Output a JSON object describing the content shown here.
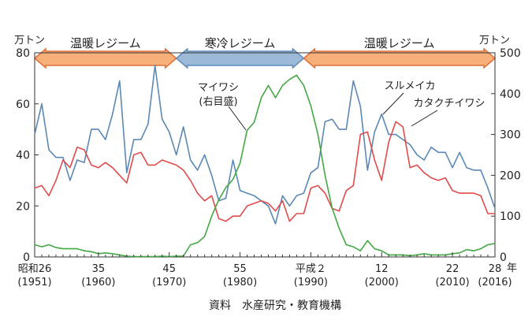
{
  "chart_data": {
    "type": "line",
    "y_left_unit": "万トン",
    "y_right_unit": "万トン",
    "x_unit": "年",
    "source_note": "資料　水産研究・教育機構",
    "ylim_left": [
      0,
      80
    ],
    "ylim_right": [
      0,
      500
    ],
    "xlim": [
      1951,
      2016
    ],
    "left_ticks": [
      "0",
      "20",
      "40",
      "60",
      "80"
    ],
    "right_ticks": [
      "0",
      "100",
      "200",
      "300",
      "400",
      "500"
    ],
    "x_ticks": [
      {
        "year": 1951,
        "era": "昭和26",
        "western": "(1951)"
      },
      {
        "year": 1960,
        "era": "35",
        "western": "(1960)"
      },
      {
        "year": 1970,
        "era": "45",
        "western": "(1970)"
      },
      {
        "year": 1980,
        "era": "55",
        "western": "(1980)"
      },
      {
        "year": 1990,
        "era": "平成２",
        "western": "(1990)"
      },
      {
        "year": 2000,
        "era": "12",
        "western": "(2000)"
      },
      {
        "year": 2010,
        "era": "22",
        "western": "(2010)"
      },
      {
        "year": 2016,
        "era": "28",
        "western": "(2016)"
      }
    ],
    "regimes": [
      {
        "label": "温暖レジーム",
        "start": 1951,
        "end": 1971,
        "color": "#f7b07a",
        "edge": "#e0703a"
      },
      {
        "label": "寒冷レジーム",
        "start": 1971,
        "end": 1989,
        "color": "#9db9d8",
        "edge": "#5f8bbd"
      },
      {
        "label": "温暖レジーム",
        "start": 1989,
        "end": 2016,
        "color": "#f7b07a",
        "edge": "#e0703a"
      }
    ],
    "series": [
      {
        "name": "スルメイカ",
        "axis": "left",
        "color": "#5b88b5",
        "x": [
          1951,
          1952,
          1953,
          1954,
          1955,
          1956,
          1957,
          1958,
          1959,
          1960,
          1961,
          1962,
          1963,
          1964,
          1965,
          1966,
          1967,
          1968,
          1969,
          1970,
          1971,
          1972,
          1973,
          1974,
          1975,
          1976,
          1977,
          1978,
          1979,
          1980,
          1981,
          1982,
          1983,
          1984,
          1985,
          1986,
          1987,
          1988,
          1989,
          1990,
          1991,
          1992,
          1993,
          1994,
          1995,
          1996,
          1997,
          1998,
          1999,
          2000,
          2001,
          2002,
          2003,
          2004,
          2005,
          2006,
          2007,
          2008,
          2009,
          2010,
          2011,
          2012,
          2013,
          2014,
          2015,
          2016
        ],
        "values": [
          48,
          60,
          42,
          39,
          39,
          30,
          38,
          37,
          50,
          50,
          46,
          56,
          69,
          33,
          46,
          46,
          52,
          75,
          54,
          49,
          40,
          51,
          38,
          34,
          40,
          32,
          22,
          23,
          38,
          26,
          25,
          24,
          22,
          20,
          13,
          24,
          20,
          24,
          25,
          33,
          35,
          53,
          54,
          50,
          50,
          69,
          59,
          34,
          49,
          56,
          48,
          48,
          46,
          44,
          40,
          38,
          43,
          41,
          41,
          35,
          41,
          35,
          34,
          34,
          27,
          19
        ]
      },
      {
        "name": "カタクチイワシ",
        "axis": "left",
        "color": "#e24b4b",
        "x": [
          1951,
          1952,
          1953,
          1954,
          1955,
          1956,
          1957,
          1958,
          1959,
          1960,
          1961,
          1962,
          1963,
          1964,
          1965,
          1966,
          1967,
          1968,
          1969,
          1970,
          1971,
          1972,
          1973,
          1974,
          1975,
          1976,
          1977,
          1978,
          1979,
          1980,
          1981,
          1982,
          1983,
          1984,
          1985,
          1986,
          1987,
          1988,
          1989,
          1990,
          1991,
          1992,
          1993,
          1994,
          1995,
          1996,
          1997,
          1998,
          1999,
          2000,
          2001,
          2002,
          2003,
          2004,
          2005,
          2006,
          2007,
          2008,
          2009,
          2010,
          2011,
          2012,
          2013,
          2014,
          2015,
          2016
        ],
        "values": [
          27,
          28,
          24,
          30,
          38,
          35,
          43,
          42,
          36,
          35,
          37,
          35,
          32,
          29,
          40,
          41,
          36,
          36,
          38,
          37,
          36,
          34,
          30,
          25,
          22,
          24,
          15,
          14,
          16,
          16,
          20,
          21,
          22,
          21,
          18,
          22,
          14,
          17,
          17,
          27,
          28,
          25,
          19,
          18,
          26,
          28,
          48,
          49,
          38,
          30,
          45,
          53,
          51,
          35,
          36,
          33,
          31,
          30,
          31,
          26,
          25,
          25,
          25,
          24,
          17,
          17
        ]
      },
      {
        "name": "マイワシ（右目盛）",
        "axis": "right",
        "color": "#44a844",
        "x": [
          1951,
          1952,
          1953,
          1954,
          1955,
          1956,
          1957,
          1958,
          1959,
          1960,
          1961,
          1962,
          1963,
          1964,
          1965,
          1966,
          1967,
          1968,
          1969,
          1970,
          1971,
          1972,
          1973,
          1974,
          1975,
          1976,
          1977,
          1978,
          1979,
          1980,
          1981,
          1982,
          1983,
          1984,
          1985,
          1986,
          1987,
          1988,
          1989,
          1990,
          1991,
          1992,
          1993,
          1994,
          1995,
          1996,
          1997,
          1998,
          1999,
          2000,
          2001,
          2002,
          2003,
          2004,
          2005,
          2006,
          2007,
          2008,
          2009,
          2010,
          2011,
          2012,
          2013,
          2014,
          2015,
          2016
        ],
        "values": [
          30,
          25,
          30,
          23,
          20,
          20,
          20,
          15,
          13,
          8,
          10,
          8,
          5,
          2,
          1,
          1,
          1,
          1,
          2,
          1,
          2,
          2,
          30,
          35,
          50,
          100,
          140,
          170,
          190,
          230,
          310,
          330,
          390,
          420,
          390,
          420,
          435,
          445,
          420,
          370,
          300,
          200,
          120,
          70,
          30,
          25,
          15,
          40,
          20,
          15,
          5,
          5,
          5,
          3,
          5,
          8,
          5,
          5,
          5,
          8,
          10,
          18,
          15,
          20,
          30,
          33
        ]
      }
    ],
    "labels": [
      {
        "text": "マイワシ",
        "series": 2
      },
      {
        "text": "(右目盛)",
        "series": 2
      },
      {
        "text": "スルメイカ",
        "series": 0
      },
      {
        "text": "カタクチイワシ",
        "series": 1
      }
    ]
  }
}
